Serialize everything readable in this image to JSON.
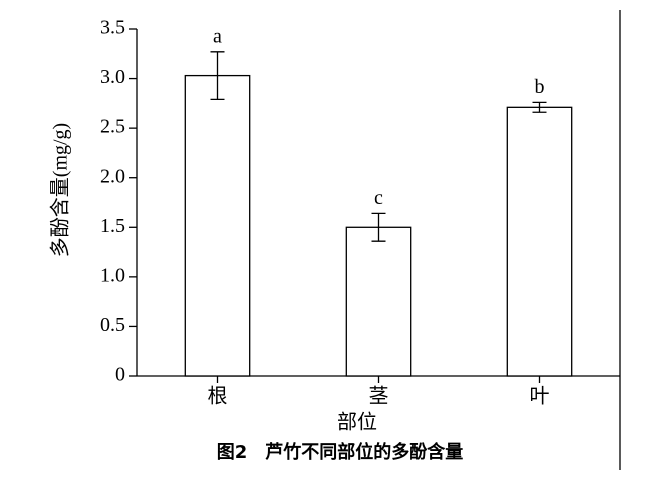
{
  "chart_data": {
    "type": "bar",
    "ylabel": "多酚含量(mg/g)",
    "xlabel": "部位",
    "caption": "图2　芦竹不同部位的多酚含量",
    "categories": [
      "根",
      "茎",
      "叶"
    ],
    "values": [
      3.03,
      1.5,
      2.71
    ],
    "errors": [
      0.24,
      0.14,
      0.05
    ],
    "letters": [
      "a",
      "c",
      "b"
    ],
    "color": "#ffffff",
    "ylim": [
      0,
      3.5
    ],
    "yticks": [
      0,
      0.5,
      {
        "value": 1,
        "label": "1.0"
      },
      1.5,
      {
        "value": 2,
        "label": "2.0"
      },
      2.5,
      {
        "value": 3,
        "label": "3.0"
      },
      3.5
    ]
  }
}
